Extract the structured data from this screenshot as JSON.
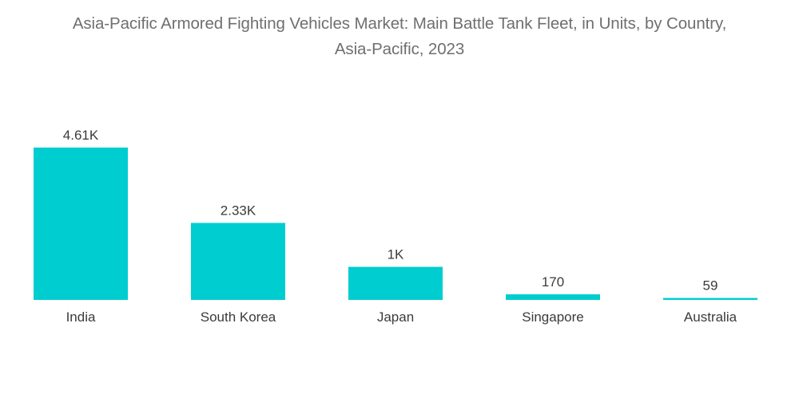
{
  "chart_data": {
    "type": "bar",
    "title_lines": [
      "Asia-Pacific Armored Fighting Vehicles Market: Main Battle Tank Fleet, in Units, by Country,",
      "Asia-Pacific, 2023"
    ],
    "categories": [
      "India",
      "South Korea",
      "Japan",
      "Singapore",
      "Australia"
    ],
    "values": [
      4610,
      2330,
      1000,
      170,
      59
    ],
    "value_labels": [
      "4.61K",
      "2.33K",
      "1K",
      "170",
      "59"
    ],
    "xlabel": "",
    "ylabel": "",
    "ylim": [
      0,
      4610
    ],
    "grid": false,
    "legend": "none",
    "colors": {
      "bar": "#00cdd0",
      "text": "#3b3b3b",
      "title": "#6f6f6f"
    }
  }
}
